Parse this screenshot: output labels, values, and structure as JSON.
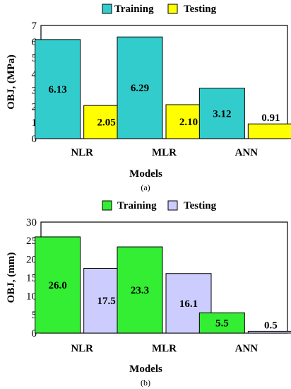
{
  "chart_data": [
    {
      "type": "bar",
      "panel_caption": "(a)",
      "categories": [
        "NLR",
        "MLR",
        "ANN"
      ],
      "series": [
        {
          "name": "Training",
          "color": "#33CCCC",
          "values": [
            6.13,
            6.29,
            3.12
          ],
          "labels": [
            "6.13",
            "6.29",
            "3.12"
          ]
        },
        {
          "name": "Testing",
          "color": "#FFFF00",
          "values": [
            2.05,
            2.1,
            0.91
          ],
          "labels": [
            "2.05",
            "2.10",
            "0.91"
          ]
        }
      ],
      "xlabel": "Models",
      "ylabel": "OBJ, (MPa)",
      "ylim": [
        0,
        7
      ],
      "yticks": [
        0,
        1,
        2,
        3,
        4,
        5,
        6,
        7
      ],
      "grid": false,
      "legend_position": "top-center"
    },
    {
      "type": "bar",
      "panel_caption": "(b)",
      "categories": [
        "NLR",
        "MLR",
        "ANN"
      ],
      "series": [
        {
          "name": "Training",
          "color": "#33EE33",
          "values": [
            26.0,
            23.3,
            5.5
          ],
          "labels": [
            "26.0",
            "23.3",
            "5.5"
          ]
        },
        {
          "name": "Testing",
          "color": "#CCCCFF",
          "values": [
            17.5,
            16.1,
            0.5
          ],
          "labels": [
            "17.5",
            "16.1",
            "0.5"
          ]
        }
      ],
      "xlabel": "Models",
      "ylabel": "OBJ, (mm)",
      "ylim": [
        0,
        30
      ],
      "yticks": [
        0,
        5,
        10,
        15,
        20,
        25,
        30
      ],
      "grid": false,
      "legend_position": "top-center"
    }
  ]
}
